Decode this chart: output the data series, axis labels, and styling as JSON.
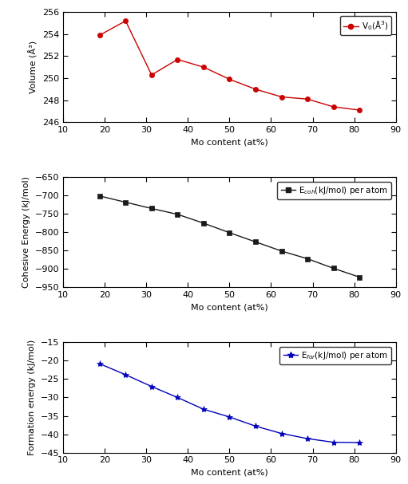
{
  "mo_content": [
    18.75,
    25.0,
    31.25,
    37.5,
    43.75,
    50.0,
    56.25,
    62.5,
    68.75,
    75.0,
    81.25
  ],
  "volume": [
    253.9,
    255.2,
    250.3,
    251.7,
    251.0,
    249.9,
    249.0,
    248.3,
    248.1,
    247.4,
    247.1
  ],
  "cohesive_energy": [
    -701.0,
    -718.0,
    -735.0,
    -751.0,
    -775.0,
    -801.0,
    -826.0,
    -851.0,
    -872.0,
    -898.0,
    -922.0
  ],
  "formation_energy": [
    -20.8,
    -23.8,
    -27.0,
    -30.0,
    -33.2,
    -35.3,
    -37.8,
    -39.8,
    -41.2,
    -42.2,
    -42.3
  ],
  "xlim": [
    10,
    90
  ],
  "xticks": [
    10,
    20,
    30,
    40,
    50,
    60,
    70,
    80,
    90
  ],
  "vol_ylim": [
    246,
    256
  ],
  "vol_yticks": [
    246,
    248,
    250,
    252,
    254,
    256
  ],
  "vol_ylabel": "Volume (Å³)",
  "vol_color": "#cc0000",
  "coh_ylim": [
    -950,
    -650
  ],
  "coh_yticks": [
    -950,
    -900,
    -850,
    -800,
    -750,
    -700,
    -650
  ],
  "coh_ylabel": "Cohesive Energy (kJ/mol)",
  "coh_color": "#1a1a1a",
  "for_ylim": [
    -45,
    -15
  ],
  "for_yticks": [
    -45,
    -40,
    -35,
    -30,
    -25,
    -20,
    -15
  ],
  "for_ylabel": "Formation energy (kJ/mol)",
  "for_color": "#0000bb",
  "xlabel": "Mo content (at%)",
  "background_color": "#ffffff",
  "fig_background": "#ffffff"
}
